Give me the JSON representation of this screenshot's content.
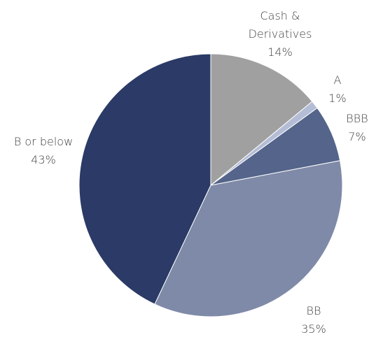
{
  "chart_data": {
    "type": "pie",
    "categories": [
      "Cash & Derivatives",
      "A",
      "BBB",
      "BB",
      "B or below"
    ],
    "values": [
      14,
      1,
      7,
      35,
      43
    ],
    "value_labels": [
      "14%",
      "1%",
      "7%",
      "35%",
      "43%"
    ],
    "colors": [
      "#a0a0a0",
      "#b4bdd6",
      "#55648a",
      "#7f8aa8",
      "#2b3a66"
    ]
  }
}
